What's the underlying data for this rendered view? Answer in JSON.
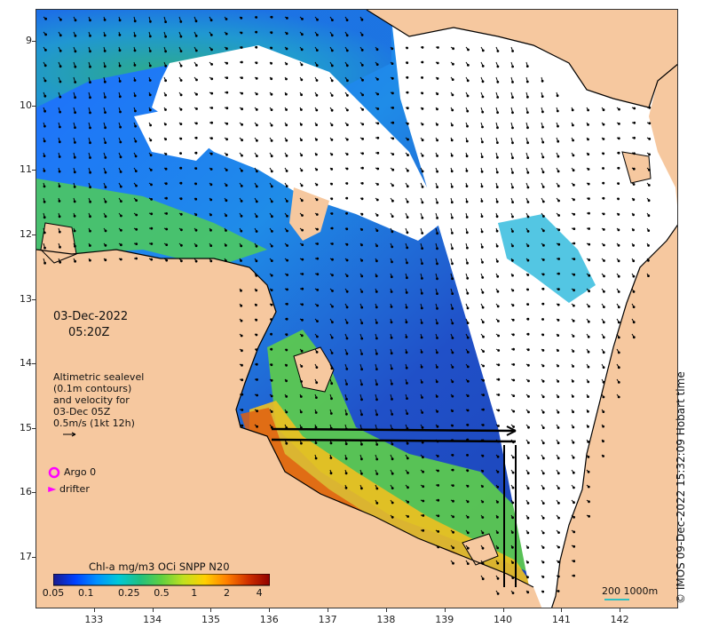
{
  "map": {
    "date_line": "03-Dec-2022",
    "time_line": "05:20Z",
    "altimetry_lines": [
      "Altimetric sealevel",
      "(0.1m contours)",
      "and velocity for",
      "03-Dec 05Z",
      "0.5m/s (1kt 12h)"
    ],
    "argo_label": "Argo 0",
    "drifter_label": "drifter",
    "colorbar_title": "Chl-a mg/m3 OCi SNPP N20",
    "colorbar_ticks": [
      "0.05",
      "0.1",
      "0.25",
      "0.5",
      "1",
      "2",
      "4"
    ],
    "colorbar_values": [
      0.05,
      0.1,
      0.25,
      0.5,
      1,
      2,
      4
    ],
    "colorbar_range": [
      0.05,
      5
    ],
    "colorbar_scale": "log",
    "scale_label": "200  1000m",
    "credit": "© IMOS 09-Dec-2022 15:32:09 Hobart time",
    "lat_ticks": [
      "9",
      "10",
      "11",
      "12",
      "13",
      "14",
      "15",
      "16",
      "17"
    ],
    "lat_values": [
      -9,
      -10,
      -11,
      -12,
      -13,
      -14,
      -15,
      -16,
      -17
    ],
    "lon_ticks": [
      "133",
      "134",
      "135",
      "136",
      "137",
      "138",
      "139",
      "140",
      "141",
      "142"
    ],
    "lon_values": [
      133,
      134,
      135,
      136,
      137,
      138,
      139,
      140,
      141,
      142
    ],
    "lon_range": [
      132,
      143
    ],
    "lat_range": [
      -8.5,
      -17.8
    ],
    "colors": {
      "land": "#f6c89f",
      "ocean_no_data": "#ffffff",
      "argo": "#ff00ff",
      "drifter": "#ff00ff",
      "coastline": "#000000",
      "scale_bar": "#30c0c0"
    },
    "colorbar_colors": [
      "#1a1a8c",
      "#0040ff",
      "#0090ff",
      "#00c8d8",
      "#20c080",
      "#60d040",
      "#c0e020",
      "#ffd000",
      "#ff8000",
      "#d03000",
      "#900000"
    ]
  }
}
